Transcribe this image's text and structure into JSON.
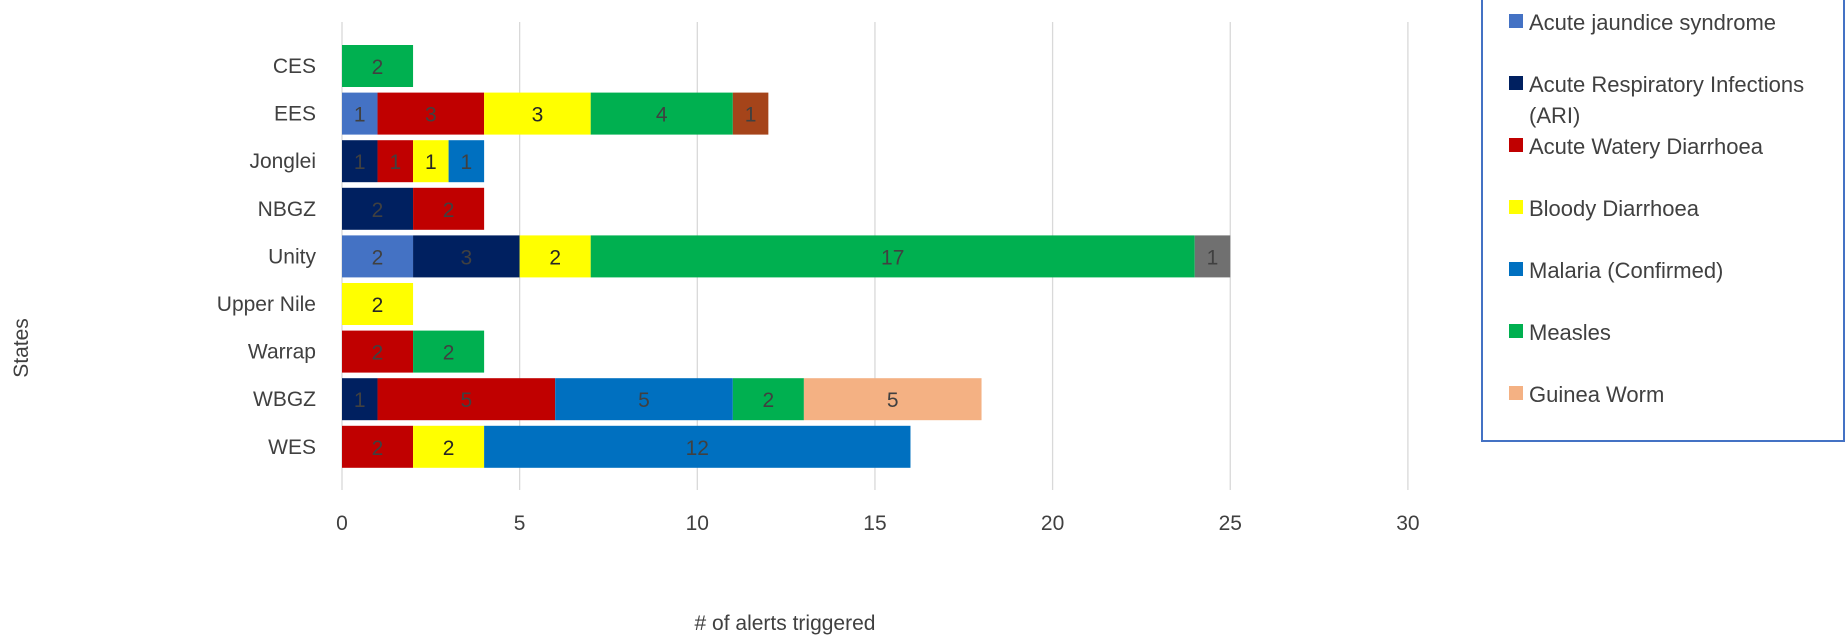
{
  "chart_data": {
    "type": "bar",
    "orientation": "horizontal",
    "stacked": true,
    "title": "",
    "xlabel": "# of alerts triggered",
    "ylabel": "States",
    "xlim": [
      0,
      30
    ],
    "xticks": [
      "0",
      "5",
      "10",
      "15",
      "20",
      "25",
      "30"
    ],
    "grid": "vertical",
    "legend_position": "right",
    "categories": [
      "CES",
      "EES",
      "Jonglei",
      "NBGZ",
      "Unity",
      "Upper Nile",
      "Warrap",
      "WBGZ",
      "WES"
    ],
    "legend": [
      {
        "name": "Acute jaundice syndrome",
        "lines": [
          "Acute jaundice syndrome"
        ],
        "color": "#4472C4"
      },
      {
        "name": "Acute Respiratory Infections (ARI)",
        "lines": [
          "Acute Respiratory Infections",
          "(ARI)"
        ],
        "color": "#002060"
      },
      {
        "name": "Acute Watery Diarrhoea",
        "lines": [
          "Acute Watery Diarrhoea"
        ],
        "color": "#C00000"
      },
      {
        "name": "Bloody Diarrhoea",
        "lines": [
          "Bloody Diarrhoea"
        ],
        "color": "#FFFF00"
      },
      {
        "name": "Malaria (Confirmed)",
        "lines": [
          "Malaria (Confirmed)"
        ],
        "color": "#0070C0"
      },
      {
        "name": "Measles",
        "lines": [
          "Measles"
        ],
        "color": "#00B050"
      },
      {
        "name": "Guinea Worm",
        "lines": [
          "Guinea Worm"
        ],
        "color": "#F4B183"
      }
    ],
    "series": [
      {
        "name": "Acute jaundice syndrome",
        "color": "#4472C4",
        "label_color": "#404040",
        "values": [
          0,
          1,
          0,
          0,
          2,
          0,
          0,
          0,
          0
        ]
      },
      {
        "name": "Acute Respiratory Infections (ARI)",
        "color": "#002060",
        "label_color": "#404040",
        "values": [
          0,
          0,
          1,
          2,
          3,
          0,
          0,
          1,
          0
        ]
      },
      {
        "name": "Acute Watery Diarrhoea",
        "color": "#C00000",
        "label_color": "#404040",
        "values": [
          0,
          3,
          1,
          2,
          0,
          0,
          2,
          5,
          2
        ]
      },
      {
        "name": "Bloody Diarrhoea",
        "color": "#FFFF00",
        "label_color": "#262626",
        "values": [
          0,
          3,
          1,
          0,
          2,
          2,
          0,
          0,
          2
        ]
      },
      {
        "name": "Malaria (Confirmed)",
        "color": "#0070C0",
        "label_color": "#404040",
        "values": [
          0,
          0,
          1,
          0,
          0,
          0,
          0,
          5,
          12
        ]
      },
      {
        "name": "Measles",
        "color": "#00B050",
        "label_color": "#404040",
        "values": [
          2,
          4,
          0,
          0,
          17,
          0,
          2,
          2,
          0
        ]
      },
      {
        "name": "",
        "color": "#A5441A",
        "label_color": "#404040",
        "values": [
          0,
          1,
          0,
          0,
          0,
          0,
          0,
          0,
          0
        ]
      },
      {
        "name": "",
        "color": "#707070",
        "label_color": "#404040",
        "values": [
          0,
          0,
          0,
          0,
          1,
          0,
          0,
          0,
          0
        ]
      },
      {
        "name": "Guinea Worm",
        "color": "#F4B183",
        "label_color": "#404040",
        "values": [
          0,
          0,
          0,
          0,
          0,
          0,
          0,
          5,
          0
        ]
      }
    ]
  }
}
